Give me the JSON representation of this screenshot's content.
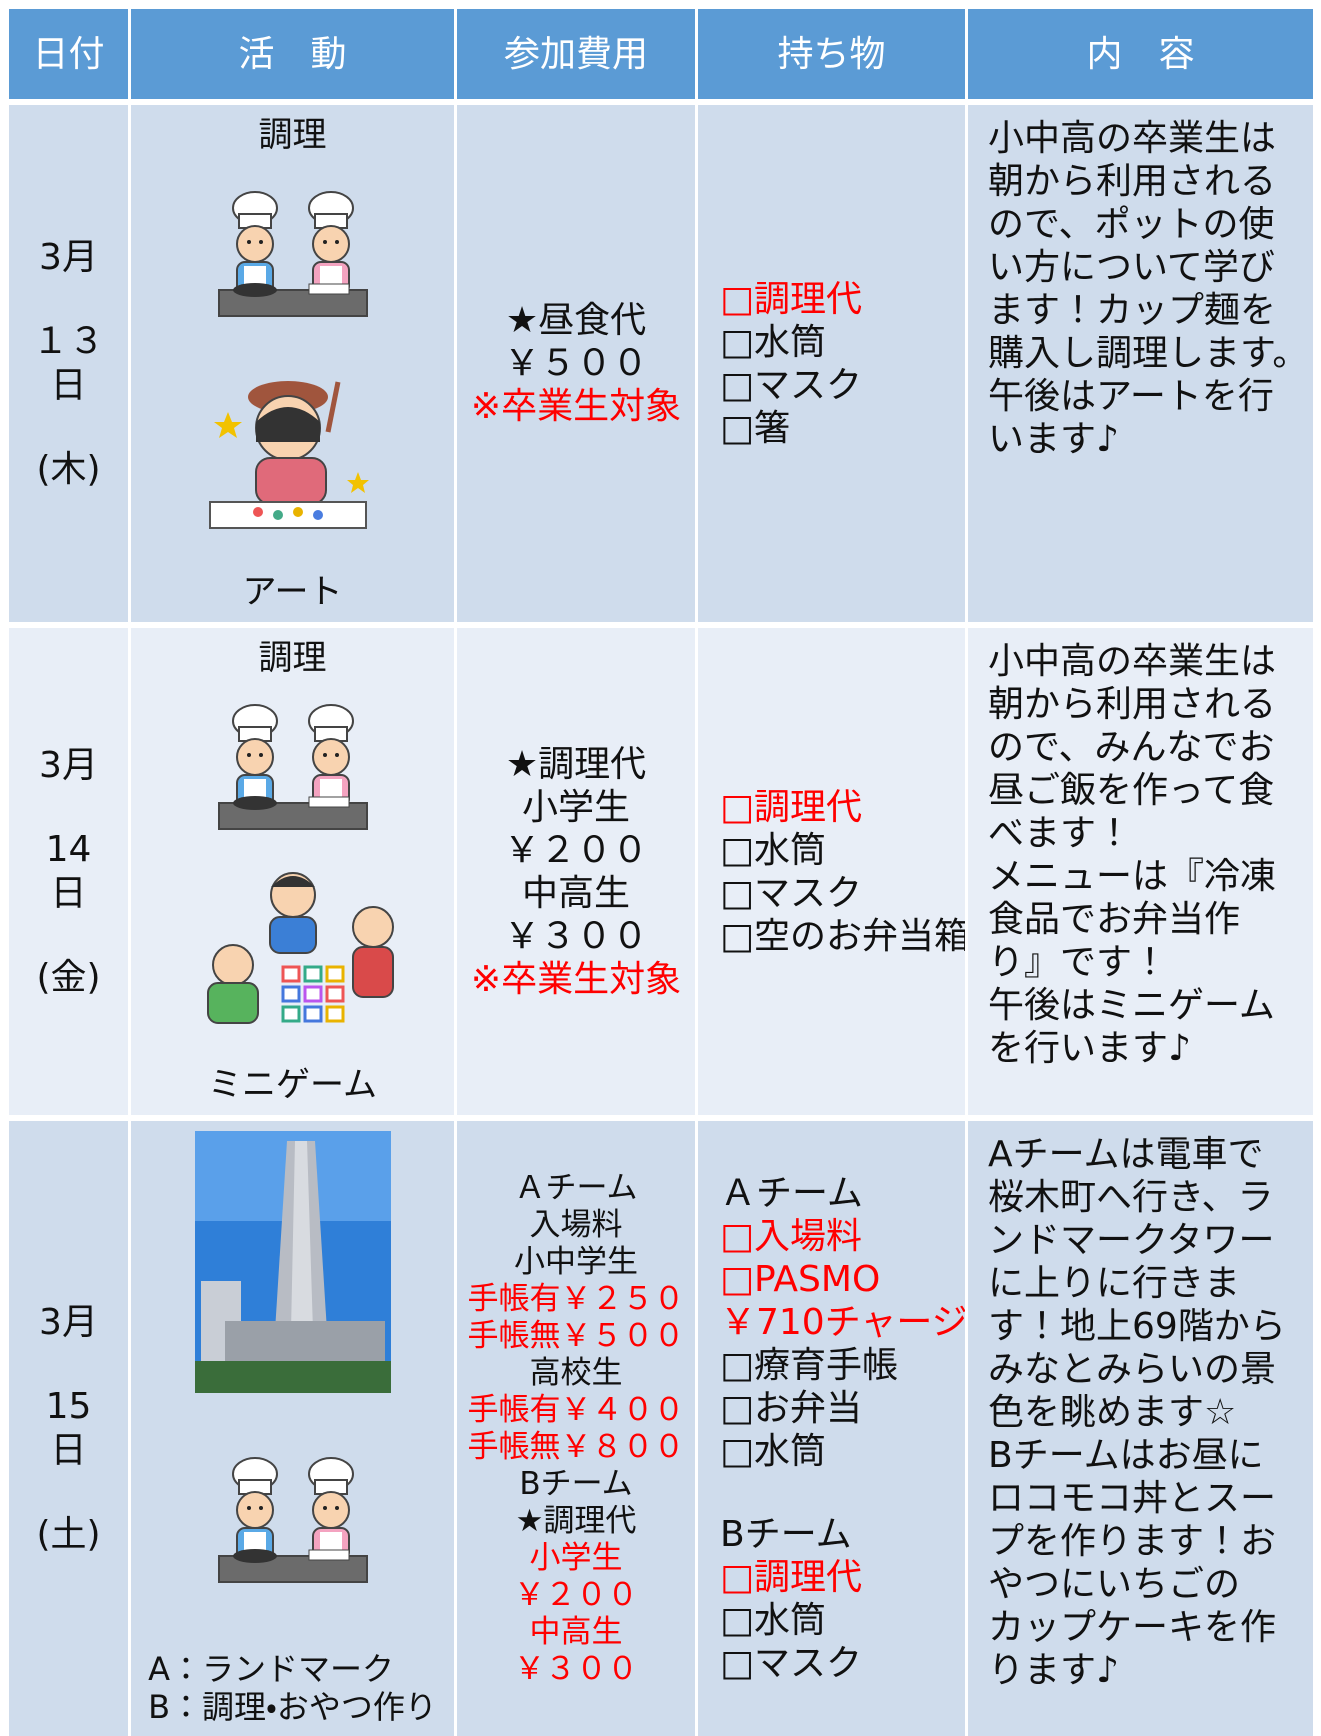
{
  "header": [
    "日付",
    "活　動",
    "参加費用",
    "持ち物",
    "内　容"
  ],
  "rows": [
    {
      "date": [
        "3月",
        "１３",
        "日",
        "(木)"
      ],
      "activity": [
        "調理",
        "アート"
      ],
      "fees": [
        "★昼食代",
        "￥５００",
        {
          "text": "※卒業生対象",
          "color": "#ff0000"
        }
      ],
      "items": [
        [
          {
            "text": "□調理代",
            "color": "#ff0000"
          },
          "□水筒",
          "□マスク",
          "□箸"
        ]
      ],
      "content": [
        "小中高の卒業生は",
        "朝から利用される",
        "ので、ポットの使",
        "い方について学び",
        "ます！カップ麺を",
        "購入し調理します。",
        "午後はアートを行",
        "います♪"
      ]
    },
    {
      "date": [
        "3月",
        "14",
        "日",
        "(金)"
      ],
      "activity": [
        "調理",
        "ミニゲーム"
      ],
      "fees": [
        "★調理代",
        "小学生",
        "￥２００",
        "中高生",
        "￥３００",
        {
          "text": "※卒業生対象",
          "color": "#ff0000"
        }
      ],
      "items": [
        [
          {
            "text": "□調理代",
            "color": "#ff0000"
          },
          "□水筒",
          "□マスク",
          "□空のお弁当箱"
        ]
      ],
      "content": [
        "小中高の卒業生は",
        "朝から利用される",
        "ので、みんなでお",
        "昼ご飯を作って食",
        "べます！",
        "メニューは『冷凍",
        "食品でお弁当作",
        "り』です！",
        "午後はミニゲーム",
        "を行います♪"
      ]
    },
    {
      "date": [
        "3月",
        "15",
        "日",
        "(土)"
      ],
      "activity": [
        "A：ランドマーク",
        "B：調理・おやつ作り"
      ],
      "fees": [
        "Ａチーム",
        "入場料",
        "小中学生",
        {
          "text": "手帳有￥２５０",
          "color": "#ff0000"
        },
        {
          "text": "手帳無￥５００",
          "color": "#ff0000"
        },
        "高校生",
        {
          "text": "手帳有￥４００",
          "color": "#ff0000"
        },
        {
          "text": "手帳無￥８００",
          "color": "#ff0000"
        },
        "Bチーム",
        "★調理代",
        {
          "text": "小学生",
          "color": "#ff0000"
        },
        {
          "text": "￥２００",
          "color": "#ff0000"
        },
        {
          "text": "中高生",
          "color": "#ff0000"
        },
        {
          "text": "￥３００",
          "color": "#ff0000"
        }
      ],
      "items": [
        [
          "Ａチーム",
          {
            "text": "□入場料",
            "color": "#ff0000"
          },
          {
            "text": "□PASMO",
            "color": "#ff0000"
          },
          {
            "text": "￥710チャージ",
            "color": "#ff0000"
          },
          "□療育手帳",
          "□お弁当",
          "□水筒"
        ],
        [
          "Bチーム",
          {
            "text": "□調理代",
            "color": "#ff0000"
          },
          "□水筒",
          "□マスク"
        ]
      ],
      "content": [
        "Aチームは電車で",
        "桜木町へ行き、ラ",
        "ンドマークタワー",
        "に上りに行きま",
        "す！地上69階から",
        "みなとみらいの景",
        "色を眺めます☆",
        "Bチームはお昼に",
        "ロコモコ丼とスー",
        "プを作ります！お",
        "やつにいちごの",
        "カップケーキを作",
        "ります♪"
      ]
    }
  ]
}
